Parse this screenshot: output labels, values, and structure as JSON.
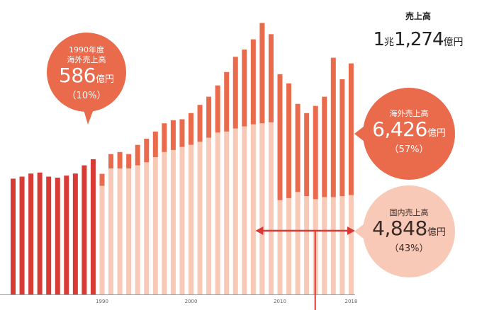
{
  "chart_data": {
    "type": "bar",
    "stacked": true,
    "x_tick_labels": [
      "1990",
      "2000",
      "2010",
      "2018"
    ],
    "year_start": 1980,
    "year_end": 2018,
    "unit": "億円",
    "colors": {
      "pre_1990_total": "#d83a36",
      "domestic": "#f8c9b7",
      "overseas": "#ea6a4c",
      "axis": "#999999",
      "arrow": "#d83a36"
    },
    "series": [
      {
        "name": "国内売上高",
        "values": [
          null,
          null,
          null,
          null,
          null,
          null,
          null,
          null,
          null,
          null,
          5300,
          6150,
          6150,
          6150,
          6300,
          6450,
          6700,
          6950,
          7050,
          7200,
          7300,
          7450,
          7650,
          7900,
          7950,
          8100,
          8200,
          8300,
          8350,
          8400,
          4600,
          4700,
          5000,
          4800,
          4650,
          4750,
          4750,
          4800,
          4848
        ]
      },
      {
        "name": "海外売上高",
        "values": [
          null,
          null,
          null,
          null,
          null,
          null,
          null,
          null,
          null,
          null,
          586,
          700,
          800,
          700,
          1000,
          1150,
          1250,
          1400,
          1450,
          1350,
          1550,
          1800,
          2000,
          2300,
          2900,
          3500,
          3750,
          4150,
          4900,
          4300,
          6150,
          5600,
          4300,
          4050,
          4550,
          4900,
          6800,
          5700,
          6426
        ]
      },
      {
        "name": "total_pre_1990",
        "values": [
          5650,
          5750,
          5900,
          5950,
          5750,
          5700,
          5800,
          5900,
          6300,
          6600,
          null,
          null,
          null,
          null,
          null,
          null,
          null,
          null,
          null,
          null,
          null,
          null,
          null,
          null,
          null,
          null,
          null,
          null,
          null,
          null,
          null,
          null,
          null,
          null,
          null,
          null,
          null,
          null,
          null
        ]
      }
    ],
    "ylim": [
      0,
      14300
    ]
  },
  "annotations": {
    "total": {
      "label": "売上高",
      "value_number": "1",
      "value_unit1": "兆",
      "value_number2": "1,274",
      "value_unit2": "億円"
    },
    "callout_1990": {
      "title_line1": "1990年度",
      "title_line2": "海外売上高",
      "value": "586",
      "unit": "億円",
      "pct": "（10%）"
    },
    "callout_overseas": {
      "title": "海外売上高",
      "value": "6,426",
      "unit": "億円",
      "pct": "（57%）"
    },
    "callout_domestic": {
      "title": "国内売上高",
      "value": "4,848",
      "unit": "億円",
      "pct": "（43%）"
    }
  }
}
